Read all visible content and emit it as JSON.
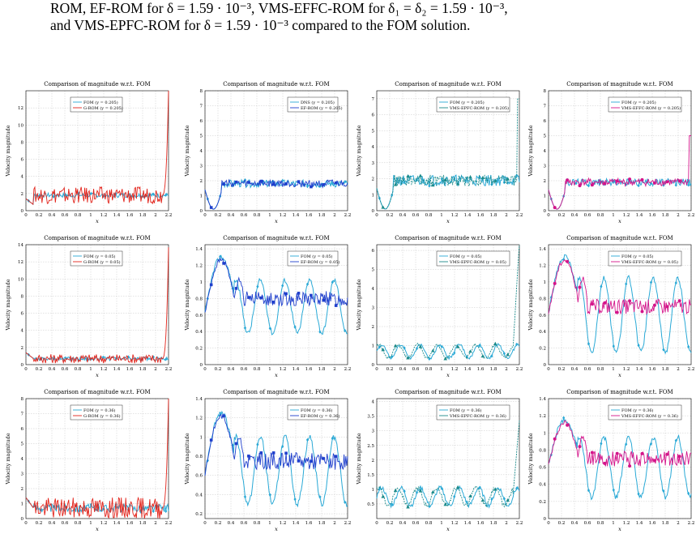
{
  "caption": {
    "line1": "ROM, EF-ROM for δ = 1.59 · 10⁻³, VMS-EFFC-ROM for δ₁ = δ₂ = 1.59 · 10⁻³,",
    "line2": "and VMS-EPFC-ROM for δ = 1.59 · 10⁻³ compared to the FOM solution."
  },
  "colors": {
    "fom": "#29a9d6",
    "g_rom": "#e2231a",
    "ef_rom": "#1f3fcc",
    "vms_epfc": "#1b8a8a",
    "vms_effc": "#d4148a"
  },
  "chart_data": [
    {
      "type": "line",
      "title": "Comparison of magnitude w.r.t. FOM",
      "xlabel": "x",
      "ylabel": "Velocity magnitude",
      "ylim": [
        0,
        14
      ],
      "yticks": [
        "0",
        "2",
        "4",
        "6",
        "8",
        "10",
        "12"
      ],
      "xticks": [
        "0",
        "0.2",
        "0.4",
        "0.6",
        "0.8",
        "1",
        "1.2",
        "1.4",
        "1.6",
        "1.8",
        "2",
        "2.2"
      ],
      "legend": [
        "FOM (y = 0.205)",
        "G-ROM (y = 0.205)"
      ],
      "pattern": "spike",
      "seed": 1,
      "base": 1.8,
      "amp": 0.35,
      "spike": 12.3,
      "roughness": 0.9
    },
    {
      "type": "line",
      "title": "Comparison of magnitude w.r.t. FOM",
      "xlabel": "x",
      "ylabel": "Velocity magnitude",
      "ylim": [
        0,
        8
      ],
      "yticks": [
        "0",
        "1",
        "2",
        "3",
        "4",
        "5",
        "6",
        "7",
        "8"
      ],
      "xticks": [
        "0",
        "0.2",
        "0.4",
        "0.6",
        "0.8",
        "1",
        "1.2",
        "1.4",
        "1.6",
        "1.8",
        "2",
        "2.2"
      ],
      "legend": [
        "DNS (y = 0.205)",
        "EF-ROM (y = 0.205)"
      ],
      "pattern": "flat",
      "seed": 2,
      "base": 1.8,
      "amp": 0.25
    },
    {
      "type": "line",
      "title": "Comparison of magnitude w.r.t. FOM",
      "xlabel": "x",
      "ylabel": "Velocity magnitude",
      "ylim": [
        0,
        7.5
      ],
      "yticks": [
        "0",
        "1",
        "2",
        "3",
        "4",
        "5",
        "6",
        "7"
      ],
      "xticks": [
        "0",
        "0.2",
        "0.4",
        "0.6",
        "0.8",
        "1",
        "1.2",
        "1.4",
        "1.6",
        "1.8",
        "2",
        "2.2"
      ],
      "legend": [
        "FOM (y = 0.205)",
        "VMS-EPFC-ROM (y = 0.205)"
      ],
      "pattern": "flat",
      "seed": 3,
      "base": 1.9,
      "amp": 0.35,
      "spike": 7.0
    },
    {
      "type": "line",
      "title": "Comparison of magnitude w.r.t. FOM",
      "xlabel": "x",
      "ylabel": "Velocity magnitude",
      "ylim": [
        0,
        8
      ],
      "yticks": [
        "0",
        "1",
        "2",
        "3",
        "4",
        "5",
        "6",
        "7",
        "8"
      ],
      "xticks": [
        "0",
        "0.2",
        "0.4",
        "0.6",
        "0.8",
        "1",
        "1.2",
        "1.4",
        "1.6",
        "1.8",
        "2",
        "2.2"
      ],
      "legend": [
        "FOM (y = 0.205)",
        "VMS-EFFC-ROM (y = 0.205)"
      ],
      "pattern": "flat",
      "seed": 4,
      "base": 1.9,
      "amp": 0.25,
      "spike": 5.0
    },
    {
      "type": "line",
      "title": "Comparison of magnitude w.r.t. FOM",
      "xlabel": "x",
      "ylabel": "Velocity magnitude",
      "ylim": [
        0,
        14
      ],
      "yticks": [
        "0",
        "2",
        "4",
        "6",
        "8",
        "10",
        "12",
        "14"
      ],
      "xticks": [
        "0",
        "0.2",
        "0.4",
        "0.6",
        "0.8",
        "1",
        "1.2",
        "1.4",
        "1.6",
        "1.8",
        "2",
        "2.2"
      ],
      "legend": [
        "FOM (y = 0.05)",
        "G-ROM (y = 0.05)"
      ],
      "pattern": "spike",
      "seed": 5,
      "base": 0.7,
      "amp": 0.3,
      "spike": 13.0,
      "roughness": 0.4
    },
    {
      "type": "line",
      "title": "Comparison of magnitude w.r.t. FOM",
      "xlabel": "x",
      "ylabel": "Velocity magnitude",
      "ylim": [
        0,
        1.45
      ],
      "yticks": [
        "0",
        "0.2",
        "0.4",
        "0.6",
        "0.8",
        "1",
        "1.2",
        "1.4"
      ],
      "xticks": [
        "0",
        "0.2",
        "0.4",
        "0.6",
        "0.8",
        "1",
        "1.2",
        "1.4",
        "1.6",
        "1.8",
        "2",
        "2.2"
      ],
      "legend": [
        "FOM (y = 0.05)",
        "EF-ROM (y = 0.05)"
      ],
      "pattern": "osc",
      "seed": 6,
      "base": 0.7,
      "amp": 0.32,
      "peak": 1.3
    },
    {
      "type": "line",
      "title": "Comparison of magnitude w.r.t. FOM",
      "xlabel": "x",
      "ylabel": "Velocity magnitude",
      "ylim": [
        0,
        6.3
      ],
      "yticks": [
        "0",
        "1",
        "2",
        "3",
        "4",
        "5",
        "6"
      ],
      "xticks": [
        "0",
        "0.2",
        "0.4",
        "0.6",
        "0.8",
        "1",
        "1.2",
        "1.4",
        "1.6",
        "1.8",
        "2",
        "2.2"
      ],
      "legend": [
        "FOM (y = 0.05)",
        "VMS-EPFC-ROM (y = 0.05)"
      ],
      "pattern": "lowosc",
      "seed": 7,
      "base": 0.7,
      "amp": 0.35,
      "spike": 5.8
    },
    {
      "type": "line",
      "title": "Comparison of magnitude w.r.t. FOM",
      "xlabel": "x",
      "ylabel": "Velocity magnitude",
      "ylim": [
        0,
        1.45
      ],
      "yticks": [
        "0",
        "0.2",
        "0.4",
        "0.6",
        "0.8",
        "1",
        "1.2",
        "1.4"
      ],
      "xticks": [
        "0",
        "0.2",
        "0.4",
        "0.6",
        "0.8",
        "1",
        "1.2",
        "1.4",
        "1.6",
        "1.8",
        "2",
        "2.2"
      ],
      "legend": [
        "FOM (y = 0.05)",
        "VMS-EFFC-ROM (y = 0.05)"
      ],
      "pattern": "osc",
      "seed": 8,
      "base": 0.6,
      "amp": 0.45,
      "peak": 1.3
    },
    {
      "type": "line",
      "title": "Comparison of magnitude w.r.t. FOM",
      "xlabel": "x",
      "ylabel": "Velocity magnitude",
      "ylim": [
        0,
        8
      ],
      "yticks": [
        "0",
        "1",
        "2",
        "3",
        "4",
        "5",
        "6",
        "7",
        "8"
      ],
      "xticks": [
        "0",
        "0.2",
        "0.4",
        "0.6",
        "0.8",
        "1",
        "1.2",
        "1.4",
        "1.6",
        "1.8",
        "2",
        "2.2"
      ],
      "legend": [
        "FOM (y = 0.36)",
        "G-ROM (y = 0.36)"
      ],
      "pattern": "spike",
      "seed": 9,
      "base": 0.7,
      "amp": 0.35,
      "spike": 7.3,
      "roughness": 0.5
    },
    {
      "type": "line",
      "title": "Comparison of magnitude w.r.t. FOM",
      "xlabel": "x",
      "ylabel": "Velocity magnitude",
      "ylim": [
        0.15,
        1.4
      ],
      "yticks": [
        "0.2",
        "0.4",
        "0.6",
        "0.8",
        "1",
        "1.2",
        "1.4"
      ],
      "xticks": [
        "0",
        "0.2",
        "0.4",
        "0.6",
        "0.8",
        "1",
        "1.2",
        "1.4",
        "1.6",
        "1.8",
        "2",
        "2.2"
      ],
      "legend": [
        "FOM (y = 0.36)",
        "EF-ROM (y = 0.36)"
      ],
      "pattern": "osc",
      "seed": 10,
      "base": 0.65,
      "amp": 0.35,
      "peak": 1.25
    },
    {
      "type": "line",
      "title": "Comparison of magnitude w.r.t. FOM",
      "xlabel": "x",
      "ylabel": "Velocity magnitude",
      "ylim": [
        0,
        4.1
      ],
      "yticks": [
        "0.5",
        "1",
        "1.5",
        "2",
        "2.5",
        "3",
        "3.5",
        "4"
      ],
      "xticks": [
        "0",
        "0.2",
        "0.4",
        "0.6",
        "0.8",
        "1",
        "1.2",
        "1.4",
        "1.6",
        "1.8",
        "2",
        "2.2"
      ],
      "legend": [
        "FOM (y = 0.36)",
        "VMS-EPFC-ROM (y = 0.36)"
      ],
      "pattern": "lowosc",
      "seed": 11,
      "base": 0.75,
      "amp": 0.3,
      "spike": 2.6
    },
    {
      "type": "line",
      "title": "Comparison of magnitude w.r.t. FOM",
      "xlabel": "x",
      "ylabel": "Velocity magnitude",
      "ylim": [
        0,
        1.4
      ],
      "yticks": [
        "0",
        "0.2",
        "0.4",
        "0.6",
        "0.8",
        "1",
        "1.2",
        "1.4"
      ],
      "xticks": [
        "0",
        "0.2",
        "0.4",
        "0.6",
        "0.8",
        "1",
        "1.2",
        "1.4",
        "1.6",
        "1.8",
        "2",
        "2.2"
      ],
      "legend": [
        "FOM (y = 0.36)",
        "VMS-EFFC-ROM (y = 0.36)"
      ],
      "pattern": "osc",
      "seed": 12,
      "base": 0.6,
      "amp": 0.35,
      "peak": 1.15
    }
  ]
}
